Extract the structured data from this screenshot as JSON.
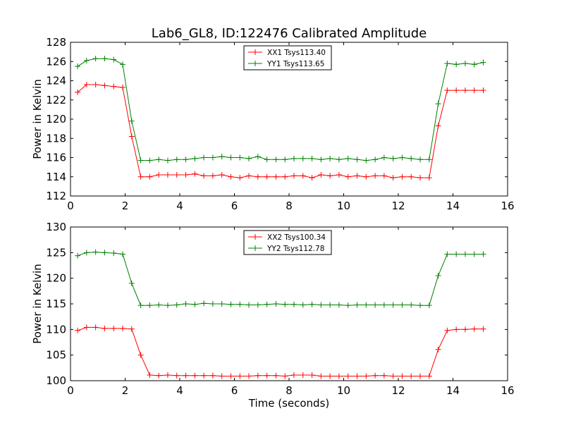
{
  "chart_data": [
    {
      "type": "line",
      "title": "Lab6_GL8, ID:122476 Calibrated Amplitude",
      "xlabel": "",
      "ylabel": "Power in Kelvin",
      "xlim": [
        0,
        16
      ],
      "ylim": [
        112,
        128
      ],
      "xticks": [
        "0",
        "2",
        "4",
        "6",
        "8",
        "10",
        "12",
        "14",
        "16"
      ],
      "yticks": [
        "112",
        "114",
        "116",
        "118",
        "120",
        "122",
        "124",
        "126",
        "128"
      ],
      "legend_position": "top-center",
      "grid": false,
      "series": [
        {
          "name": "XX1 Tsys113.40",
          "color": "#ff0000",
          "marker": "plus",
          "x": [
            0.26,
            0.59,
            0.92,
            1.25,
            1.58,
            1.91,
            2.24,
            2.57,
            2.9,
            3.23,
            3.56,
            3.89,
            4.22,
            4.55,
            4.88,
            5.21,
            5.54,
            5.87,
            6.2,
            6.53,
            6.86,
            7.19,
            7.52,
            7.85,
            8.18,
            8.51,
            8.84,
            9.17,
            9.5,
            9.83,
            10.16,
            10.49,
            10.82,
            11.15,
            11.48,
            11.81,
            12.14,
            12.47,
            12.8,
            13.13,
            13.46,
            13.79,
            14.12,
            14.45,
            14.78,
            15.11
          ],
          "y": [
            122.8,
            123.6,
            123.6,
            123.5,
            123.4,
            123.3,
            118.2,
            114.0,
            114.0,
            114.2,
            114.2,
            114.2,
            114.2,
            114.3,
            114.1,
            114.1,
            114.2,
            114.0,
            113.9,
            114.1,
            114.0,
            114.0,
            114.0,
            114.0,
            114.1,
            114.1,
            113.9,
            114.2,
            114.1,
            114.2,
            114.0,
            114.1,
            114.0,
            114.1,
            114.1,
            113.9,
            114.0,
            114.0,
            113.9,
            113.9,
            119.3,
            123.0,
            123.0,
            123.0,
            123.0,
            123.0
          ]
        },
        {
          "name": "YY1 Tsys113.65",
          "color": "#008000",
          "marker": "plus",
          "x": [
            0.26,
            0.59,
            0.92,
            1.25,
            1.58,
            1.91,
            2.24,
            2.57,
            2.9,
            3.23,
            3.56,
            3.89,
            4.22,
            4.55,
            4.88,
            5.21,
            5.54,
            5.87,
            6.2,
            6.53,
            6.86,
            7.19,
            7.52,
            7.85,
            8.18,
            8.51,
            8.84,
            9.17,
            9.5,
            9.83,
            10.16,
            10.49,
            10.82,
            11.15,
            11.48,
            11.81,
            12.14,
            12.47,
            12.8,
            13.13,
            13.46,
            13.79,
            14.12,
            14.45,
            14.78,
            15.11
          ],
          "y": [
            125.5,
            126.1,
            126.3,
            126.3,
            126.2,
            125.7,
            119.8,
            115.7,
            115.7,
            115.8,
            115.7,
            115.8,
            115.8,
            115.9,
            116.0,
            116.0,
            116.1,
            116.0,
            116.0,
            115.9,
            116.1,
            115.8,
            115.8,
            115.8,
            115.9,
            115.9,
            115.9,
            115.8,
            115.9,
            115.8,
            115.9,
            115.8,
            115.7,
            115.8,
            116.0,
            115.9,
            116.0,
            115.9,
            115.8,
            115.8,
            121.6,
            125.8,
            125.7,
            125.8,
            125.7,
            125.9
          ]
        }
      ]
    },
    {
      "type": "line",
      "title": "",
      "xlabel": "Time (seconds)",
      "ylabel": "Power in Kelvin",
      "xlim": [
        0,
        16
      ],
      "ylim": [
        100,
        130
      ],
      "xticks": [
        "0",
        "2",
        "4",
        "6",
        "8",
        "10",
        "12",
        "14",
        "16"
      ],
      "yticks": [
        "100",
        "105",
        "110",
        "115",
        "120",
        "125",
        "130"
      ],
      "legend_position": "top-center",
      "grid": false,
      "series": [
        {
          "name": "XX2 Tsys100.34",
          "color": "#ff0000",
          "marker": "plus",
          "x": [
            0.26,
            0.59,
            0.92,
            1.25,
            1.58,
            1.91,
            2.24,
            2.57,
            2.9,
            3.23,
            3.56,
            3.89,
            4.22,
            4.55,
            4.88,
            5.21,
            5.54,
            5.87,
            6.2,
            6.53,
            6.86,
            7.19,
            7.52,
            7.85,
            8.18,
            8.51,
            8.84,
            9.17,
            9.5,
            9.83,
            10.16,
            10.49,
            10.82,
            11.15,
            11.48,
            11.81,
            12.14,
            12.47,
            12.8,
            13.13,
            13.46,
            13.79,
            14.12,
            14.45,
            14.78,
            15.11
          ],
          "y": [
            109.8,
            110.4,
            110.4,
            110.2,
            110.2,
            110.2,
            110.1,
            105.0,
            101.1,
            101.0,
            101.1,
            101.0,
            101.0,
            101.0,
            101.0,
            101.0,
            100.9,
            100.9,
            100.9,
            100.9,
            101.0,
            101.0,
            101.0,
            100.9,
            101.1,
            101.1,
            101.1,
            100.9,
            100.9,
            100.9,
            100.9,
            100.9,
            100.9,
            101.0,
            101.0,
            100.9,
            100.9,
            100.9,
            100.9,
            100.9,
            106.1,
            109.8,
            110.0,
            110.0,
            110.1,
            110.1
          ]
        },
        {
          "name": "YY2 Tsys112.78",
          "color": "#008000",
          "marker": "plus",
          "x": [
            0.26,
            0.59,
            0.92,
            1.25,
            1.58,
            1.91,
            2.24,
            2.57,
            2.9,
            3.23,
            3.56,
            3.89,
            4.22,
            4.55,
            4.88,
            5.21,
            5.54,
            5.87,
            6.2,
            6.53,
            6.86,
            7.19,
            7.52,
            7.85,
            8.18,
            8.51,
            8.84,
            9.17,
            9.5,
            9.83,
            10.16,
            10.49,
            10.82,
            11.15,
            11.48,
            11.81,
            12.14,
            12.47,
            12.8,
            13.13,
            13.46,
            13.79,
            14.12,
            14.45,
            14.78,
            15.11
          ],
          "y": [
            124.4,
            125.0,
            125.1,
            125.0,
            124.9,
            124.7,
            119.0,
            114.7,
            114.7,
            114.8,
            114.7,
            114.8,
            115.0,
            114.9,
            115.1,
            115.0,
            115.0,
            114.9,
            114.9,
            114.8,
            114.8,
            114.9,
            115.0,
            114.9,
            114.9,
            114.8,
            114.9,
            114.8,
            114.8,
            114.8,
            114.7,
            114.8,
            114.8,
            114.8,
            114.8,
            114.8,
            114.8,
            114.8,
            114.7,
            114.7,
            120.5,
            124.7,
            124.7,
            124.7,
            124.7,
            124.7
          ]
        }
      ]
    }
  ]
}
